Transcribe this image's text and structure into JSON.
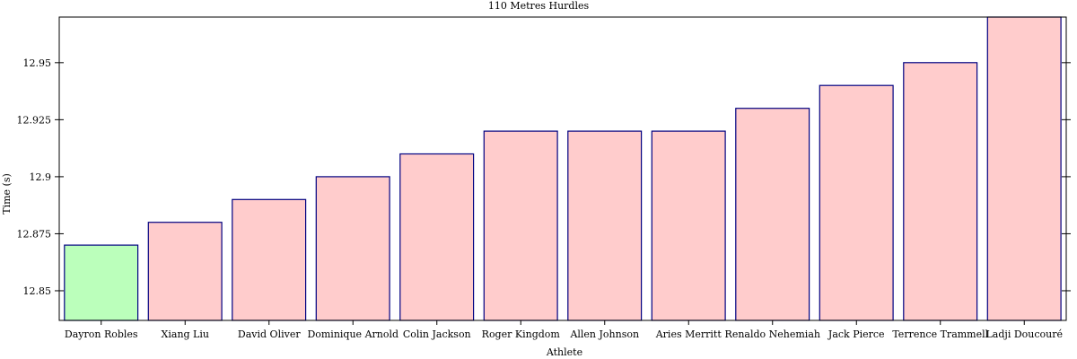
{
  "chart_data": {
    "type": "bar",
    "title": "110 Metres Hurdles",
    "xlabel": "Athlete",
    "ylabel": "Time (s)",
    "categories": [
      "Dayron Robles",
      "Xiang Liu",
      "David Oliver",
      "Dominique Arnold",
      "Colin Jackson",
      "Roger Kingdom",
      "Allen Johnson",
      "Aries Merritt",
      "Renaldo Nehemiah",
      "Jack Pierce",
      "Terrence Trammell",
      "Ladji Doucouré"
    ],
    "values": [
      12.87,
      12.88,
      12.89,
      12.9,
      12.91,
      12.92,
      12.92,
      12.92,
      12.93,
      12.94,
      12.95,
      12.97
    ],
    "highlight_index": 0,
    "ylim": [
      12.837,
      12.97
    ],
    "yticks": [
      12.85,
      12.875,
      12.9,
      12.925,
      12.95
    ],
    "ytick_labels": [
      "12.85",
      "12.875",
      "12.9",
      "12.925",
      "12.95"
    ],
    "grid": false,
    "colors": {
      "bar_fill": "#ffcccc",
      "highlight_fill": "#bbffbb",
      "bar_stroke": "#000080",
      "axis": "#000000"
    }
  }
}
